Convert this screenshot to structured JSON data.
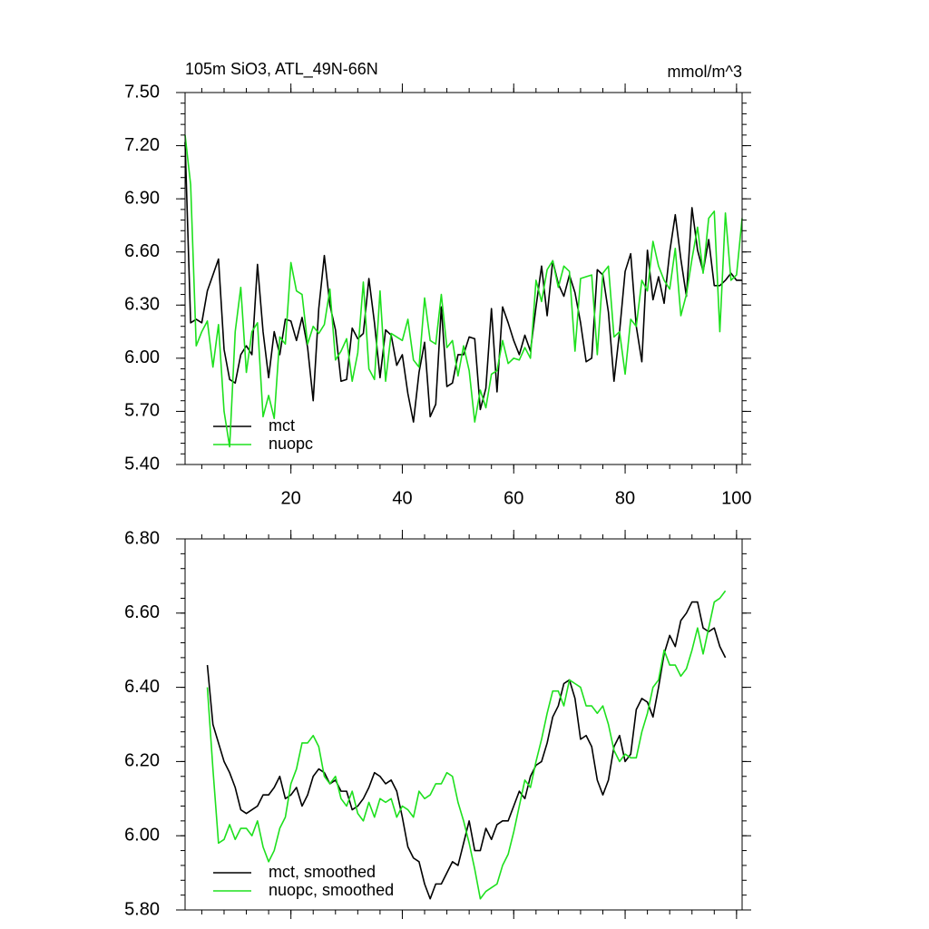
{
  "chart_data": [
    {
      "type": "line",
      "title": "105m SiO3, ATL_49N-66N",
      "subtitle": "mmol/m^3",
      "x": [
        1,
        2,
        3,
        4,
        5,
        6,
        7,
        8,
        9,
        10,
        11,
        12,
        13,
        14,
        15,
        16,
        17,
        18,
        19,
        20,
        21,
        22,
        23,
        24,
        25,
        26,
        27,
        28,
        29,
        30,
        31,
        32,
        33,
        34,
        35,
        36,
        37,
        38,
        39,
        40,
        41,
        42,
        43,
        44,
        45,
        46,
        47,
        48,
        49,
        50,
        51,
        52,
        53,
        54,
        55,
        56,
        57,
        58,
        59,
        60,
        61,
        62,
        63,
        64,
        65,
        66,
        67,
        68,
        69,
        70,
        71,
        72,
        73,
        74,
        75,
        76,
        77,
        78,
        79,
        80,
        81,
        82,
        83,
        84,
        85,
        86,
        87,
        88,
        89,
        90,
        91,
        92,
        93,
        94,
        95,
        96,
        97,
        98,
        99,
        100,
        101
      ],
      "series": [
        {
          "name": "mct",
          "color": "#000000",
          "values": [
            7.22,
            6.2,
            6.22,
            6.2,
            6.38,
            6.47,
            6.56,
            6.05,
            5.88,
            5.86,
            6.02,
            6.07,
            6.02,
            6.53,
            6.15,
            5.89,
            6.15,
            6.02,
            6.22,
            6.21,
            6.1,
            6.23,
            6.06,
            5.76,
            6.28,
            6.58,
            6.3,
            6.16,
            5.87,
            5.88,
            6.17,
            6.11,
            6.14,
            6.45,
            6.2,
            5.89,
            6.16,
            6.13,
            5.96,
            6.02,
            5.8,
            5.64,
            5.92,
            6.09,
            5.67,
            5.74,
            6.29,
            5.84,
            5.86,
            6.02,
            6.02,
            6.12,
            6.11,
            5.71,
            5.83,
            6.28,
            5.81,
            6.29,
            6.2,
            6.1,
            6.02,
            6.13,
            6.04,
            6.29,
            6.52,
            6.24,
            6.55,
            6.42,
            6.35,
            6.47,
            6.37,
            6.2,
            5.98,
            6.0,
            6.5,
            6.47,
            6.26,
            5.87,
            6.15,
            6.49,
            6.59,
            6.18,
            5.98,
            6.61,
            6.33,
            6.46,
            6.31,
            6.6,
            6.81,
            6.56,
            6.35,
            6.85,
            6.61,
            6.49,
            6.67,
            6.41,
            6.41,
            6.44,
            6.48,
            6.44,
            6.44
          ]
        },
        {
          "name": "nuopc",
          "color": "#1ee01e",
          "values": [
            7.26,
            6.98,
            6.07,
            6.15,
            6.21,
            5.95,
            6.19,
            5.7,
            5.5,
            6.15,
            6.4,
            5.92,
            6.15,
            6.2,
            5.67,
            5.79,
            5.66,
            6.12,
            6.08,
            6.54,
            6.38,
            6.36,
            6.08,
            6.18,
            6.14,
            6.19,
            6.39,
            5.99,
            6.04,
            6.11,
            5.87,
            6.03,
            6.43,
            5.94,
            5.88,
            6.38,
            5.87,
            6.14,
            6.12,
            6.1,
            6.22,
            5.99,
            5.95,
            6.34,
            6.1,
            6.08,
            6.36,
            6.06,
            6.1,
            5.9,
            6.07,
            5.93,
            5.64,
            5.82,
            5.72,
            5.91,
            5.93,
            6.1,
            5.97,
            6.0,
            5.99,
            6.06,
            6.0,
            6.44,
            6.32,
            6.5,
            6.55,
            6.4,
            6.52,
            6.49,
            6.04,
            6.45,
            6.46,
            6.47,
            6.02,
            6.48,
            6.52,
            6.12,
            6.15,
            5.91,
            6.22,
            6.18,
            6.44,
            6.38,
            6.66,
            6.52,
            6.44,
            6.39,
            6.62,
            6.24,
            6.36,
            6.56,
            6.74,
            6.48,
            6.79,
            6.83,
            6.15,
            6.82,
            6.44,
            6.47,
            6.79
          ]
        }
      ],
      "xlim": [
        1,
        101
      ],
      "xticks": [
        20,
        40,
        60,
        80,
        100
      ],
      "ylim": [
        5.4,
        7.5
      ],
      "yticks": [
        {
          "value": 5.4,
          "label": "5.40"
        },
        {
          "value": 5.7,
          "label": "5.70"
        },
        {
          "value": 6.0,
          "label": "6.00"
        },
        {
          "value": 6.3,
          "label": "6.30"
        },
        {
          "value": 6.6,
          "label": "6.60"
        },
        {
          "value": 6.9,
          "label": "6.90"
        },
        {
          "value": 7.2,
          "label": "7.20"
        },
        {
          "value": 7.5,
          "label": "7.50"
        }
      ],
      "legend": "lower left"
    },
    {
      "type": "line",
      "x": [
        5,
        6,
        7,
        8,
        9,
        10,
        11,
        12,
        13,
        14,
        15,
        16,
        17,
        18,
        19,
        20,
        21,
        22,
        23,
        24,
        25,
        26,
        27,
        28,
        29,
        30,
        31,
        32,
        33,
        34,
        35,
        36,
        37,
        38,
        39,
        40,
        41,
        42,
        43,
        44,
        45,
        46,
        47,
        48,
        49,
        50,
        51,
        52,
        53,
        54,
        55,
        56,
        57,
        58,
        59,
        60,
        61,
        62,
        63,
        64,
        65,
        66,
        67,
        68,
        69,
        70,
        71,
        72,
        73,
        74,
        75,
        76,
        77,
        78,
        79,
        80,
        81,
        82,
        83,
        84,
        85,
        86,
        87,
        88,
        89,
        90,
        91,
        92,
        93,
        94,
        95,
        96,
        97,
        98
      ],
      "series": [
        {
          "name": "mct, smoothed",
          "color": "#000000",
          "values": [
            6.46,
            6.3,
            6.25,
            6.2,
            6.17,
            6.13,
            6.07,
            6.06,
            6.07,
            6.08,
            6.11,
            6.11,
            6.13,
            6.16,
            6.1,
            6.11,
            6.13,
            6.08,
            6.11,
            6.16,
            6.18,
            6.17,
            6.14,
            6.15,
            6.12,
            6.12,
            6.07,
            6.08,
            6.1,
            6.13,
            6.17,
            6.16,
            6.14,
            6.15,
            6.12,
            6.05,
            5.97,
            5.94,
            5.93,
            5.87,
            5.83,
            5.87,
            5.87,
            5.9,
            5.93,
            5.92,
            5.98,
            6.04,
            5.96,
            5.96,
            6.02,
            5.99,
            6.03,
            6.04,
            6.04,
            6.08,
            6.12,
            6.1,
            6.16,
            6.19,
            6.2,
            6.25,
            6.32,
            6.35,
            6.41,
            6.42,
            6.37,
            6.26,
            6.27,
            6.24,
            6.15,
            6.11,
            6.15,
            6.24,
            6.27,
            6.2,
            6.22,
            6.34,
            6.37,
            6.36,
            6.32,
            6.4,
            6.49,
            6.54,
            6.51,
            6.58,
            6.6,
            6.63,
            6.63,
            6.56,
            6.55,
            6.56,
            6.51,
            6.48
          ]
        },
        {
          "name": "nuopc, smoothed",
          "color": "#1ee01e",
          "values": [
            6.4,
            6.18,
            5.98,
            5.99,
            6.03,
            5.99,
            6.02,
            6.02,
            6.0,
            6.04,
            5.97,
            5.93,
            5.96,
            6.02,
            6.05,
            6.14,
            6.18,
            6.25,
            6.25,
            6.27,
            6.24,
            6.16,
            6.14,
            6.16,
            6.1,
            6.08,
            6.12,
            6.06,
            6.04,
            6.09,
            6.05,
            6.1,
            6.09,
            6.1,
            6.05,
            6.08,
            6.07,
            6.05,
            6.12,
            6.1,
            6.11,
            6.14,
            6.14,
            6.17,
            6.16,
            6.09,
            6.04,
            5.98,
            5.91,
            5.83,
            5.85,
            5.86,
            5.87,
            5.92,
            5.95,
            6.01,
            6.08,
            6.15,
            6.13,
            6.2,
            6.26,
            6.33,
            6.39,
            6.39,
            6.35,
            6.42,
            6.41,
            6.4,
            6.35,
            6.35,
            6.33,
            6.35,
            6.3,
            6.23,
            6.2,
            6.22,
            6.21,
            6.21,
            6.28,
            6.33,
            6.4,
            6.42,
            6.5,
            6.46,
            6.46,
            6.43,
            6.45,
            6.5,
            6.56,
            6.49,
            6.56,
            6.63,
            6.64,
            6.66
          ]
        }
      ],
      "xlim": [
        1,
        101
      ],
      "xticks": [
        20,
        40,
        60,
        80,
        100
      ],
      "ylim": [
        5.8,
        6.8
      ],
      "yticks": [
        {
          "value": 5.8,
          "label": "5.80"
        },
        {
          "value": 6.0,
          "label": "6.00"
        },
        {
          "value": 6.2,
          "label": "6.20"
        },
        {
          "value": 6.4,
          "label": "6.40"
        },
        {
          "value": 6.6,
          "label": "6.60"
        },
        {
          "value": 6.8,
          "label": "6.80"
        }
      ],
      "legend": "lower left"
    }
  ]
}
